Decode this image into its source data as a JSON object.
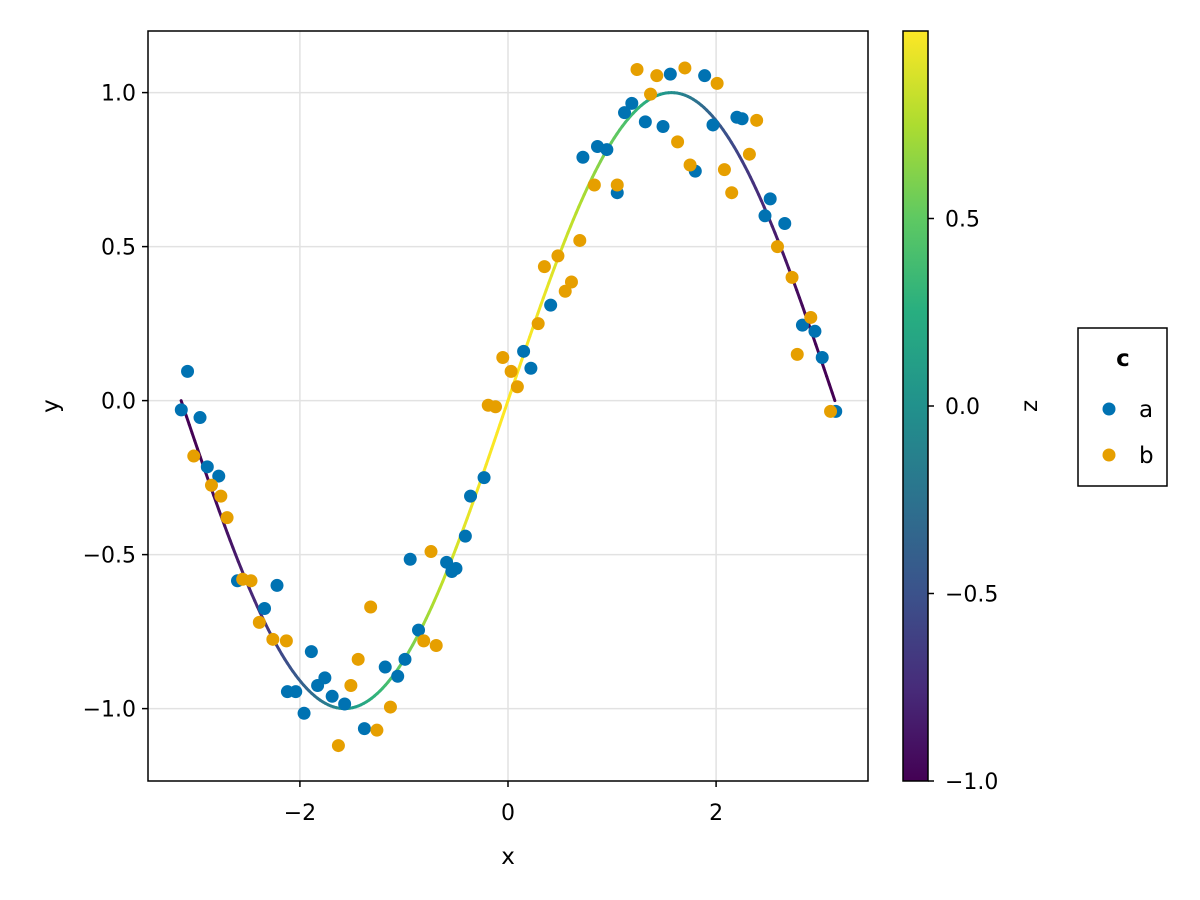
{
  "chart_data": {
    "type": "scatter",
    "xlabel": "x",
    "ylabel": "y",
    "xlim": [
      -3.46,
      3.46
    ],
    "ylim": [
      -1.235,
      1.2
    ],
    "x_ticks": [
      -2,
      0,
      2
    ],
    "y_ticks": [
      -1.0,
      -0.5,
      0.0,
      0.5,
      1.0
    ],
    "x_tick_labels": [
      "−2",
      "0",
      "2"
    ],
    "y_tick_labels": [
      "−1.0",
      "−0.5",
      "0.0",
      "0.5",
      "1.0"
    ],
    "grid": true,
    "line": {
      "function": "sin(x)",
      "x_range": [
        -3.14159,
        3.14159
      ],
      "color_by": "z = cos(x)"
    },
    "series": [
      {
        "name": "a",
        "color": "#0072b2",
        "x": [
          -3.14,
          -3.08,
          -2.96,
          -2.89,
          -2.78,
          -2.6,
          -2.34,
          -2.22,
          -2.12,
          -2.04,
          -1.96,
          -1.89,
          -1.83,
          -1.76,
          -1.69,
          -1.57,
          -1.38,
          -1.18,
          -1.06,
          -0.99,
          -0.94,
          -0.86,
          -0.59,
          -0.54,
          -0.5,
          -0.41,
          -0.36,
          -0.23,
          0.15,
          0.22,
          0.41,
          0.72,
          0.86,
          0.95,
          1.05,
          1.12,
          1.19,
          1.32,
          1.49,
          1.56,
          1.8,
          1.89,
          1.97,
          2.2,
          2.25,
          2.47,
          2.52,
          2.66,
          2.83,
          2.95,
          3.02,
          3.15
        ],
        "y": [
          -0.03,
          0.095,
          -0.055,
          -0.215,
          -0.245,
          -0.585,
          -0.675,
          -0.6,
          -0.945,
          -0.945,
          -1.015,
          -0.815,
          -0.925,
          -0.9,
          -0.96,
          -0.985,
          -1.065,
          -0.865,
          -0.895,
          -0.84,
          -0.515,
          -0.745,
          -0.525,
          -0.555,
          -0.545,
          -0.44,
          -0.31,
          -0.25,
          0.16,
          0.105,
          0.31,
          0.79,
          0.825,
          0.815,
          0.675,
          0.935,
          0.965,
          0.905,
          0.89,
          1.06,
          0.745,
          1.055,
          0.895,
          0.92,
          0.915,
          0.6,
          0.655,
          0.575,
          0.245,
          0.225,
          0.14,
          -0.035
        ]
      },
      {
        "name": "b",
        "color": "#e69f00",
        "x": [
          -3.02,
          -2.85,
          -2.76,
          -2.7,
          -2.55,
          -2.47,
          -2.39,
          -2.26,
          -2.13,
          -1.63,
          -1.51,
          -1.44,
          -1.32,
          -1.26,
          -1.13,
          -0.81,
          -0.74,
          -0.69,
          -0.19,
          -0.12,
          -0.05,
          0.03,
          0.09,
          0.29,
          0.35,
          0.48,
          0.55,
          0.61,
          0.69,
          0.83,
          1.05,
          1.24,
          1.37,
          1.43,
          1.63,
          1.7,
          1.75,
          2.01,
          2.08,
          2.15,
          2.32,
          2.39,
          2.59,
          2.73,
          2.78,
          2.91,
          3.1
        ],
        "y": [
          -0.18,
          -0.275,
          -0.31,
          -0.38,
          -0.58,
          -0.585,
          -0.72,
          -0.775,
          -0.78,
          -1.12,
          -0.925,
          -0.84,
          -0.67,
          -1.07,
          -0.995,
          -0.78,
          -0.49,
          -0.795,
          -0.015,
          -0.02,
          0.14,
          0.095,
          0.045,
          0.25,
          0.435,
          0.47,
          0.355,
          0.385,
          0.52,
          0.7,
          0.7,
          1.075,
          0.995,
          1.055,
          0.84,
          1.08,
          0.765,
          1.03,
          0.75,
          0.675,
          0.8,
          0.91,
          0.5,
          0.4,
          0.15,
          0.27,
          -0.035
        ]
      }
    ],
    "colorbar": {
      "label": "z",
      "colormap": "viridis",
      "range": [
        -1.0,
        1.0
      ],
      "ticks": [
        -1.0,
        -0.5,
        0.0,
        0.5
      ],
      "tick_labels": [
        "−1.0",
        "−0.5",
        "0.0",
        "0.5"
      ]
    },
    "legend": {
      "title": "c",
      "position": "right",
      "entries": [
        {
          "label": "a",
          "color": "#0072b2"
        },
        {
          "label": "b",
          "color": "#e69f00"
        }
      ]
    }
  }
}
